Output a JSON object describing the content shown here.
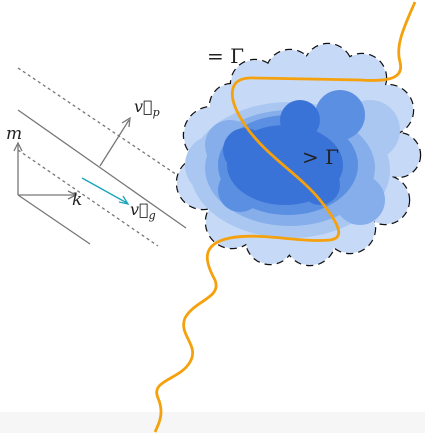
{
  "labels": {
    "equal": "= Γ",
    "greater": "> Γ",
    "m": "m",
    "k": "k",
    "vp": {
      "base": "v⃗",
      "sub": "p"
    },
    "vg": {
      "base": "v⃗",
      "sub": "g"
    }
  }
}
